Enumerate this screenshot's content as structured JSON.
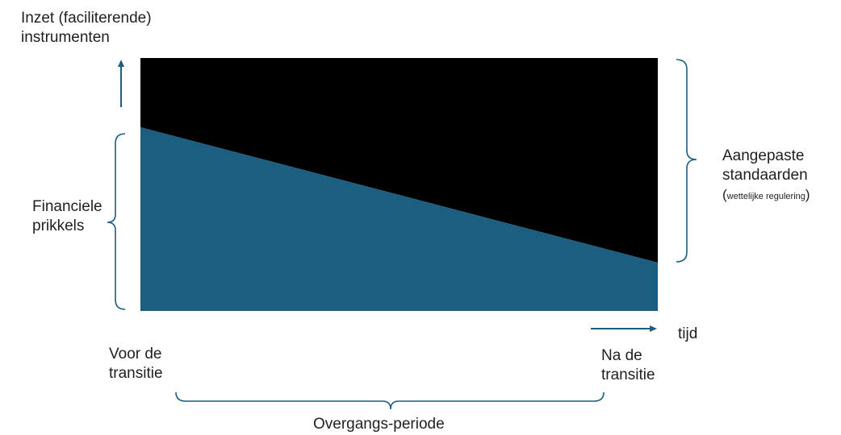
{
  "colors": {
    "top_region": "#000000",
    "bottom_region": "#1b5e80",
    "accent": "#1b5e80",
    "text": "#1f1f1f"
  },
  "labels": {
    "y_axis_line1": "Inzet (faciliterende)",
    "y_axis_line2": "instrumenten",
    "financial_line1": "Financiele",
    "financial_line2": "prikkels",
    "standards_line1": "Aangepaste",
    "standards_line2": "standaarden",
    "standards_paren_open": "(",
    "standards_note": "wettelijke regulering",
    "standards_paren_close": ")",
    "time": "tijd",
    "before_line1": "Voor de",
    "before_line2": "transitie",
    "after_line1": "Na de",
    "after_line2": "transitie",
    "transition_period": "Overgangs-periode"
  },
  "icons": {
    "y_axis_arrow": "arrow-up-icon",
    "time_arrow": "arrow-right-icon",
    "left_brace": "brace-left-icon",
    "right_brace": "brace-right-icon",
    "bottom_brace": "brace-bottom-icon"
  }
}
